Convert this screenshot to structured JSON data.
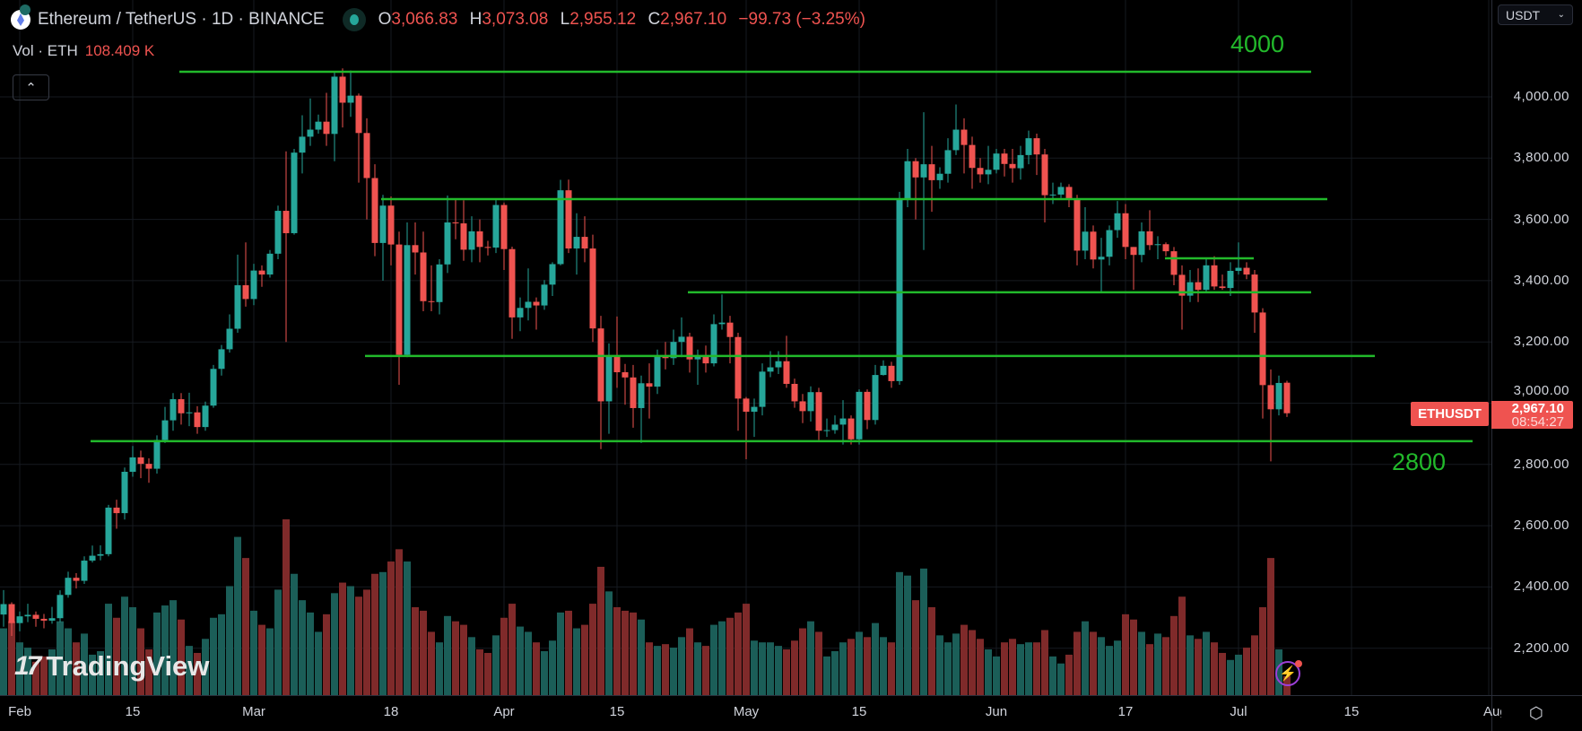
{
  "header": {
    "title": "Ethereum / TetherUS · 1D · BINANCE",
    "ohlc": [
      {
        "k": "O",
        "v": "3,066.83"
      },
      {
        "k": "H",
        "v": "3,073.08"
      },
      {
        "k": "L",
        "v": "2,955.12"
      },
      {
        "k": "C",
        "v": "2,967.10"
      }
    ],
    "change": "−99.73 (−3.25%)",
    "vol_label": "Vol · ETH",
    "vol_value": "108.409 K",
    "collapse_icon": "chevron-up"
  },
  "currency_selector": {
    "value": "USDT"
  },
  "last_price_tag": {
    "symbol": "ETHUSDT",
    "price": "2,967.10",
    "countdown": "08:54:27"
  },
  "annotations": [
    {
      "text": "4000"
    },
    {
      "text": "2800"
    }
  ],
  "branding": {
    "logo_text": "TradingView"
  },
  "colors": {
    "up": "#26a69a",
    "down": "#ef5350",
    "level_line": "#22b92b",
    "vol_up": "#1b5e58",
    "vol_down": "#7f2a2a"
  },
  "chart_data": {
    "type": "candlestick",
    "symbol": "ETHUSDT",
    "interval": "1D",
    "y_ticks": [
      "2,200.00",
      "2,400.00",
      "2,600.00",
      "2,800.00",
      "3,000.00",
      "3,200.00",
      "3,400.00",
      "3,600.00",
      "3,800.00",
      "4,000.00"
    ],
    "x_ticks": [
      "Feb",
      "15",
      "Mar",
      "18",
      "Apr",
      "15",
      "May",
      "15",
      "Jun",
      "17",
      "Jul",
      "15",
      "Aug"
    ],
    "level_lines": [
      4082,
      3666,
      3473,
      3362,
      3154,
      2876
    ],
    "open": [
      2310,
      2344,
      2282,
      2304,
      2309,
      2296,
      2290,
      2298,
      2374,
      2430,
      2420,
      2486,
      2502,
      2507,
      2659,
      2641,
      2776,
      2823,
      2802,
      2786,
      2880,
      2944,
      3013,
      2967,
      2970,
      2922,
      2992,
      3112,
      3176,
      3243,
      3385,
      3340,
      3433,
      3420,
      3488,
      3628,
      3555,
      3818,
      3870,
      3893,
      3919,
      3879,
      4066,
      3981,
      4004,
      3882,
      3735,
      3523,
      3645,
      3518,
      3158,
      3516,
      3492,
      3333,
      3330,
      3453,
      3590,
      3587,
      3501,
      3561,
      3510,
      3508,
      3647,
      3503,
      3280,
      3311,
      3331,
      3319,
      3387,
      3454,
      3695,
      3505,
      3543,
      3505,
      3244,
      3006,
      3155,
      3101,
      3084,
      2984,
      3065,
      3054,
      3153,
      3147,
      3200,
      3217,
      3143,
      3156,
      3130,
      3258,
      3263,
      3216,
      3015,
      2972,
      2988,
      3103,
      3117,
      3137,
      3063,
      3006,
      2974,
      3036,
      2910,
      2912,
      2930,
      2950,
      2882,
      3037,
      2945,
      3092,
      3122,
      3072,
      3666,
      3790,
      3737,
      3780,
      3728,
      3749,
      3826,
      3893,
      3843,
      3768,
      3747,
      3762,
      3815,
      3781,
      3767,
      3810,
      3865,
      3812,
      3679,
      3681,
      3706,
      3667,
      3498,
      3560,
      3469,
      3478,
      3565,
      3620,
      3510,
      3484,
      3561,
      3516,
      3519,
      3496,
      3419,
      3351,
      3395,
      3370,
      3450,
      3381,
      3376,
      3432,
      3442,
      3420,
      3296,
      3059,
      2980,
      3066.83
    ],
    "high": [
      2390,
      2350,
      2320,
      2345,
      2320,
      2312,
      2335,
      2389,
      2450,
      2445,
      2500,
      2535,
      2536,
      2668,
      2685,
      2790,
      2860,
      2845,
      2820,
      2895,
      2988,
      3033,
      3033,
      3034,
      2990,
      3005,
      3125,
      3190,
      3290,
      3485,
      3525,
      3455,
      3450,
      3500,
      3645,
      3822,
      3830,
      3940,
      3995,
      3942,
      4013,
      4083,
      4093,
      4086,
      4011,
      3930,
      3780,
      3680,
      3675,
      3560,
      3590,
      3590,
      3560,
      3450,
      3470,
      3678,
      3665,
      3662,
      3610,
      3600,
      3530,
      3663,
      3655,
      3511,
      3345,
      3440,
      3345,
      3402,
      3460,
      3729,
      3730,
      3620,
      3610,
      3550,
      3285,
      3195,
      3283,
      3128,
      3125,
      3090,
      3130,
      3175,
      3200,
      3240,
      3280,
      3230,
      3175,
      3188,
      3290,
      3355,
      3285,
      3230,
      3020,
      3015,
      3130,
      3170,
      3170,
      3220,
      3080,
      3030,
      3055,
      3050,
      2950,
      2960,
      3010,
      2960,
      3045,
      3045,
      3125,
      3140,
      3135,
      3690,
      3830,
      3800,
      3950,
      3840,
      3770,
      3865,
      3975,
      3930,
      3870,
      3800,
      3840,
      3830,
      3830,
      3830,
      3840,
      3890,
      3880,
      3830,
      3720,
      3720,
      3715,
      3680,
      3640,
      3580,
      3540,
      3580,
      3660,
      3650,
      3510,
      3590,
      3630,
      3545,
      3525,
      3510,
      3450,
      3435,
      3440,
      3475,
      3480,
      3420,
      3460,
      3525,
      3460,
      3435,
      3310,
      3110,
      3090,
      3073.08
    ],
    "low": [
      2270,
      2240,
      2255,
      2285,
      2270,
      2265,
      2280,
      2285,
      2365,
      2395,
      2410,
      2480,
      2487,
      2500,
      2590,
      2620,
      2760,
      2755,
      2740,
      2770,
      2870,
      2910,
      2930,
      2925,
      2900,
      2910,
      2985,
      3090,
      3165,
      3230,
      3315,
      3320,
      3380,
      3410,
      3470,
      3200,
      3550,
      3750,
      3840,
      3880,
      3840,
      3790,
      3900,
      3935,
      3720,
      3600,
      3480,
      3400,
      3450,
      3060,
      3150,
      3420,
      3300,
      3300,
      3290,
      3425,
      3535,
      3465,
      3460,
      3460,
      3482,
      3490,
      3435,
      3210,
      3235,
      3270,
      3240,
      3305,
      3350,
      3450,
      3490,
      3420,
      3460,
      3200,
      2850,
      2900,
      3050,
      2995,
      2920,
      2870,
      2950,
      3030,
      3110,
      3125,
      3150,
      3100,
      3060,
      3100,
      3120,
      3240,
      3130,
      2910,
      2817,
      2890,
      2960,
      3085,
      3095,
      3050,
      2985,
      2935,
      2940,
      2880,
      2890,
      2900,
      2865,
      2865,
      2865,
      2915,
      2930,
      3090,
      3050,
      3060,
      3640,
      3600,
      3500,
      3625,
      3700,
      3720,
      3810,
      3750,
      3700,
      3720,
      3715,
      3750,
      3740,
      3720,
      3730,
      3780,
      3745,
      3590,
      3650,
      3670,
      3640,
      3450,
      3470,
      3440,
      3360,
      3450,
      3540,
      3470,
      3370,
      3460,
      3500,
      3470,
      3480,
      3385,
      3240,
      3330,
      3330,
      3360,
      3370,
      3370,
      3350,
      3420,
      3405,
      3230,
      2950,
      2810,
      2960,
      2955.12
    ],
    "close": [
      2344,
      2282,
      2304,
      2309,
      2296,
      2290,
      2298,
      2374,
      2430,
      2420,
      2486,
      2502,
      2507,
      2659,
      2641,
      2776,
      2823,
      2802,
      2786,
      2880,
      2944,
      3013,
      2967,
      2970,
      2922,
      2992,
      3112,
      3176,
      3243,
      3385,
      3340,
      3433,
      3420,
      3488,
      3628,
      3555,
      3818,
      3870,
      3893,
      3919,
      3879,
      4066,
      3981,
      4004,
      3882,
      3735,
      3523,
      3645,
      3518,
      3158,
      3516,
      3492,
      3333,
      3330,
      3453,
      3590,
      3587,
      3501,
      3561,
      3510,
      3508,
      3647,
      3503,
      3280,
      3311,
      3331,
      3319,
      3387,
      3454,
      3695,
      3505,
      3543,
      3505,
      3244,
      3006,
      3155,
      3101,
      3084,
      2984,
      3065,
      3054,
      3153,
      3147,
      3200,
      3217,
      3143,
      3156,
      3130,
      3258,
      3263,
      3216,
      3015,
      2972,
      2988,
      3103,
      3117,
      3137,
      3063,
      3006,
      2974,
      3036,
      2910,
      2912,
      2930,
      2950,
      2882,
      3037,
      2945,
      3092,
      3122,
      3072,
      3666,
      3790,
      3737,
      3780,
      3728,
      3749,
      3826,
      3893,
      3843,
      3768,
      3747,
      3762,
      3815,
      3781,
      3767,
      3810,
      3865,
      3812,
      3679,
      3681,
      3706,
      3667,
      3498,
      3560,
      3469,
      3478,
      3565,
      3620,
      3510,
      3484,
      3561,
      3516,
      3519,
      3496,
      3419,
      3351,
      3395,
      3370,
      3450,
      3381,
      3376,
      3432,
      3442,
      3420,
      3296,
      3059,
      2980,
      3066,
      2967.1
    ],
    "volume_k": [
      380,
      420,
      300,
      270,
      190,
      220,
      260,
      420,
      380,
      300,
      350,
      230,
      250,
      520,
      440,
      560,
      500,
      380,
      260,
      470,
      510,
      540,
      430,
      280,
      240,
      320,
      440,
      460,
      620,
      900,
      780,
      480,
      400,
      380,
      600,
      1000,
      690,
      540,
      470,
      360,
      460,
      580,
      640,
      620,
      560,
      600,
      690,
      700,
      760,
      830,
      760,
      500,
      480,
      360,
      300,
      450,
      420,
      400,
      330,
      260,
      240,
      340,
      440,
      520,
      390,
      360,
      300,
      250,
      310,
      470,
      480,
      380,
      400,
      520,
      730,
      590,
      500,
      480,
      470,
      430,
      300,
      280,
      290,
      270,
      330,
      380,
      300,
      280,
      400,
      420,
      440,
      470,
      520,
      310,
      300,
      300,
      280,
      260,
      310,
      380,
      420,
      360,
      220,
      250,
      300,
      320,
      360,
      330,
      410,
      330,
      300,
      700,
      680,
      540,
      720,
      500,
      340,
      300,
      350,
      400,
      370,
      320,
      260,
      220,
      300,
      320,
      290,
      300,
      300,
      370,
      220,
      180,
      230,
      360,
      420,
      360,
      330,
      280,
      310,
      460,
      430,
      360,
      290,
      350,
      330,
      450,
      560,
      340,
      320,
      360,
      300,
      240,
      200,
      230,
      270,
      340,
      500,
      780,
      260,
      108
    ]
  }
}
